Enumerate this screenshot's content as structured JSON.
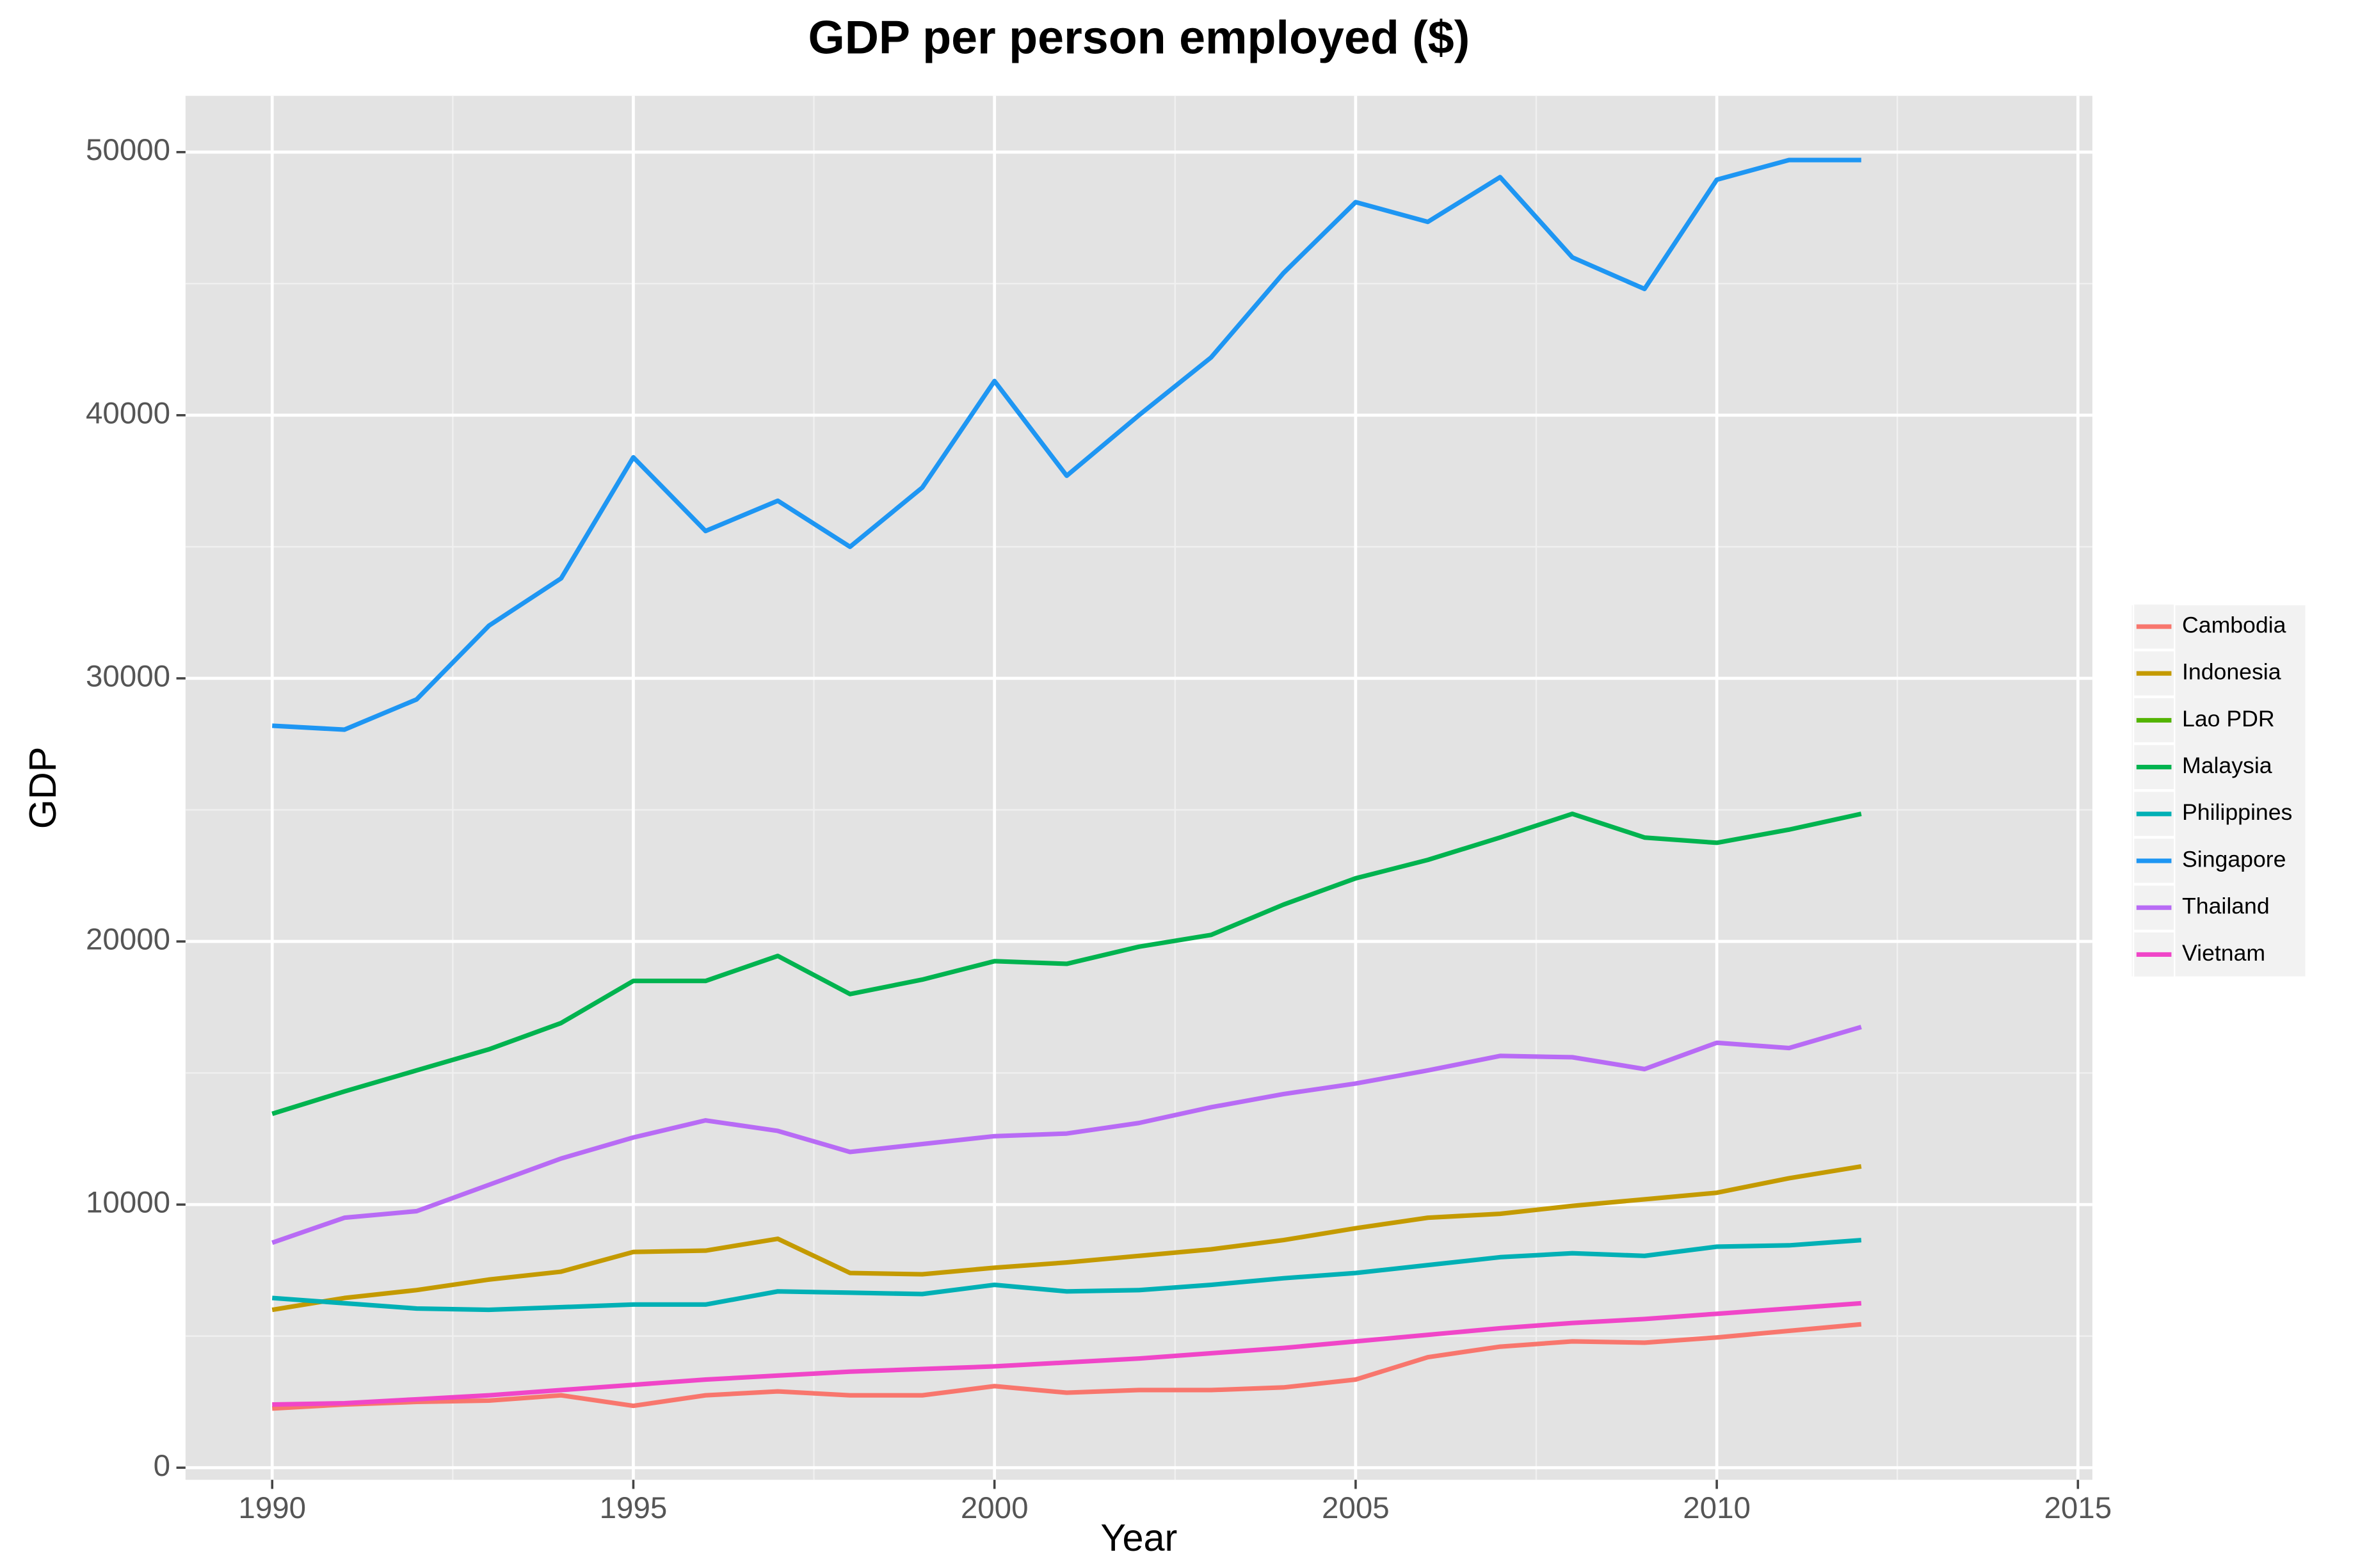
{
  "chart_data": {
    "type": "line",
    "title": "GDP per person employed ($)",
    "x_label": "Year",
    "y_label": "GDP",
    "x": [
      1990,
      1991,
      1992,
      1993,
      1994,
      1995,
      1996,
      1997,
      1998,
      1999,
      2000,
      2001,
      2002,
      2003,
      2004,
      2005,
      2006,
      2007,
      2008,
      2009,
      2010,
      2011,
      2012
    ],
    "series": [
      {
        "name": "Cambodia",
        "color": "#F8766D",
        "values": [
          2250,
          2400,
          2500,
          2550,
          2750,
          2350,
          2750,
          2900,
          2750,
          2750,
          3100,
          2850,
          2950,
          2950,
          3050,
          3350,
          4200,
          4600,
          4800,
          4750,
          4950,
          5200,
          5450
        ]
      },
      {
        "name": "Indonesia",
        "color": "#C49A00",
        "values": [
          6000,
          6450,
          6750,
          7150,
          7450,
          8200,
          8250,
          8700,
          7400,
          7350,
          7600,
          7800,
          8050,
          8300,
          8650,
          9100,
          9500,
          9650,
          9950,
          10200,
          10450,
          11000,
          11450
        ]
      },
      {
        "name": "Lao PDR",
        "color": "#53B400",
        "values": [
          null,
          null,
          null,
          null,
          null,
          null,
          null,
          null,
          null,
          null,
          null,
          null,
          null,
          null,
          null,
          null,
          null,
          null,
          null,
          null,
          null,
          null,
          null
        ]
      },
      {
        "name": "Malaysia",
        "color": "#00B34F",
        "values": [
          13450,
          14300,
          15100,
          15900,
          16900,
          18500,
          18500,
          19450,
          18000,
          18550,
          19250,
          19150,
          19800,
          20250,
          21400,
          22400,
          23100,
          23950,
          24850,
          23950,
          23750,
          24250,
          24850
        ]
      },
      {
        "name": "Philippines",
        "color": "#00B0B5",
        "values": [
          6450,
          6250,
          6050,
          6000,
          6100,
          6200,
          6200,
          6700,
          6650,
          6600,
          6950,
          6700,
          6750,
          6950,
          7200,
          7400,
          7700,
          8000,
          8150,
          8050,
          8400,
          8450,
          8650
        ]
      },
      {
        "name": "Singapore",
        "color": "#1E96F3",
        "values": [
          28200,
          28050,
          29200,
          32000,
          33800,
          38400,
          35600,
          36750,
          35000,
          37250,
          41300,
          37700,
          40000,
          42200,
          45400,
          48100,
          47350,
          49050,
          46000,
          44800,
          48950,
          49700,
          49700
        ]
      },
      {
        "name": "Thailand",
        "color": "#B86BF5",
        "values": [
          8550,
          9500,
          9750,
          10750,
          11750,
          12550,
          13200,
          12800,
          12000,
          12300,
          12600,
          12700,
          13100,
          13700,
          14200,
          14600,
          15100,
          15650,
          15600,
          15150,
          16150,
          15950,
          16750
        ]
      },
      {
        "name": "Vietnam",
        "color": "#F046C8",
        "values": [
          2400,
          2450,
          2600,
          2750,
          2950,
          3150,
          3350,
          3500,
          3650,
          3750,
          3850,
          4000,
          4150,
          4350,
          4550,
          4800,
          5050,
          5300,
          5500,
          5650,
          5850,
          6050,
          6250
        ]
      }
    ],
    "xlim": [
      1988.8,
      2015.2
    ],
    "ylim": [
      -460,
      52140
    ],
    "xticks": [
      1990,
      1995,
      2000,
      2005,
      2010,
      2015
    ],
    "yticks": [
      0,
      10000,
      20000,
      30000,
      40000,
      50000
    ],
    "grid": true
  }
}
